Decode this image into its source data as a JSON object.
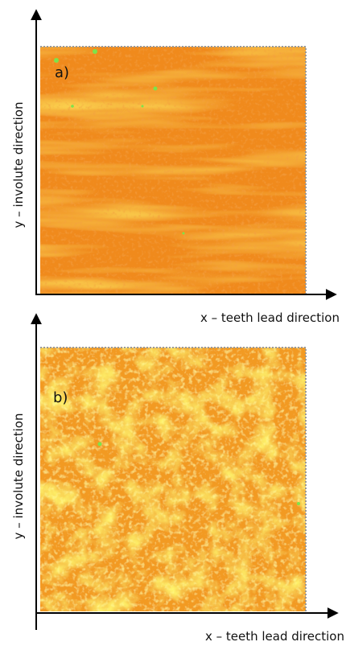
{
  "panels": [
    {
      "label": "a)",
      "x_axis": "x – teeth lead direction",
      "y_axis": "y – involute direction"
    },
    {
      "label": "b)",
      "x_axis": "x – teeth lead direction",
      "y_axis": "y – involute direction"
    }
  ]
}
